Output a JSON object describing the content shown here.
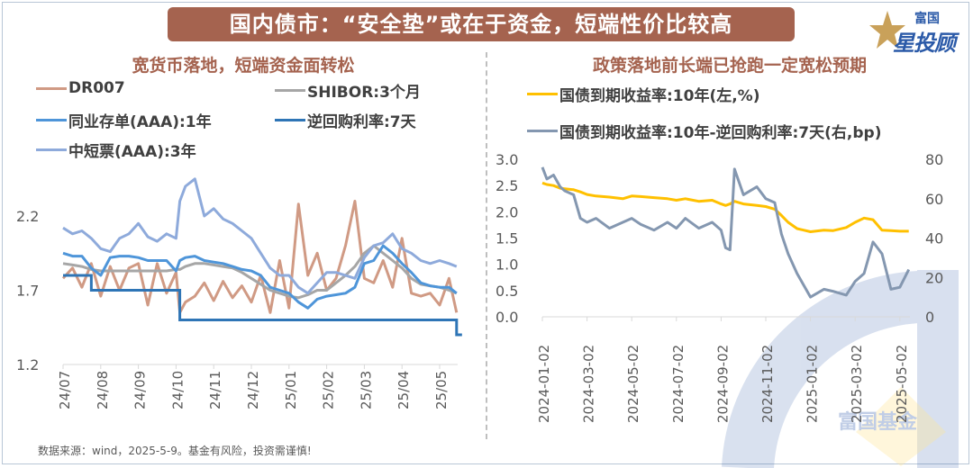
{
  "header": {
    "title": "国内债市：“安全垫”或在于资金，短端性价比较高",
    "logo_top": "富国",
    "logo_main": "星投顾",
    "watermark_text": "富国基金"
  },
  "footer": {
    "source": "数据来源：wind，2025-5-9。基金有风险，投资需谨慎!"
  },
  "colors": {
    "title_bg": "#a5634f",
    "dr007": "#d09a84",
    "shibor": "#a6a6a6",
    "ncd": "#4e95d9",
    "repo": "#2e75b6",
    "mtn": "#8eaadb",
    "cgb10y": "#ffc000",
    "spread": "#8497b0"
  },
  "chart_data": [
    {
      "type": "line",
      "title": "宽货币落地，短端资金面转松",
      "xlabel": "",
      "ylabel": "",
      "ylim": [
        1.2,
        2.2
      ],
      "yticks": [
        "1.2",
        "1.7",
        "2.2"
      ],
      "ytick_values": [
        1.2,
        1.7,
        2.2
      ],
      "xticks": [
        "24/07",
        "24/08",
        "24/09",
        "24/10",
        "24/11",
        "24/12",
        "25/01",
        "25/02",
        "25/03",
        "25/04",
        "25/05"
      ],
      "legend": "top",
      "grid": false,
      "x": [
        0,
        0.25,
        0.5,
        0.75,
        1,
        1.25,
        1.5,
        1.75,
        2,
        2.25,
        2.5,
        2.75,
        3,
        3.1,
        3.25,
        3.5,
        3.75,
        4,
        4.25,
        4.5,
        4.75,
        5,
        5.25,
        5.5,
        5.75,
        6,
        6.25,
        6.5,
        6.75,
        7,
        7.25,
        7.5,
        7.75,
        8,
        8.25,
        8.5,
        8.75,
        9,
        9.25,
        9.5,
        9.75,
        10,
        10.25,
        10.45
      ],
      "series": [
        {
          "name": "DR007",
          "color_key": "dr007",
          "values": [
            1.78,
            1.85,
            1.72,
            1.88,
            1.66,
            1.86,
            1.7,
            1.85,
            1.88,
            1.6,
            1.88,
            1.68,
            1.82,
            1.55,
            1.62,
            1.66,
            1.75,
            1.63,
            1.76,
            1.65,
            1.73,
            1.62,
            1.8,
            1.55,
            1.9,
            1.58,
            2.28,
            1.8,
            1.95,
            1.7,
            1.78,
            2.0,
            2.3,
            1.78,
            1.75,
            1.9,
            1.72,
            2.05,
            1.68,
            1.66,
            1.68,
            1.6,
            1.78,
            1.55
          ]
        },
        {
          "name": "SHIBOR:3个月",
          "color_key": "shibor",
          "values": [
            1.88,
            1.87,
            1.86,
            1.84,
            1.83,
            1.83,
            1.83,
            1.83,
            1.83,
            1.83,
            1.83,
            1.83,
            1.84,
            1.84,
            1.86,
            1.88,
            1.88,
            1.87,
            1.86,
            1.85,
            1.82,
            1.78,
            1.74,
            1.7,
            1.68,
            1.66,
            1.65,
            1.67,
            1.7,
            1.7,
            1.75,
            1.8,
            1.86,
            1.95,
            2.0,
            1.95,
            1.9,
            1.85,
            1.78,
            1.74,
            1.73,
            1.72,
            1.7,
            1.68
          ]
        },
        {
          "name": "同业存单(AAA):1年",
          "color_key": "ncd",
          "values": [
            1.95,
            1.93,
            1.93,
            1.85,
            1.8,
            1.92,
            1.93,
            1.93,
            1.92,
            1.9,
            1.9,
            1.9,
            1.83,
            1.9,
            1.92,
            1.93,
            1.9,
            1.89,
            1.88,
            1.86,
            1.84,
            1.83,
            1.8,
            1.72,
            1.7,
            1.68,
            1.62,
            1.58,
            1.64,
            1.66,
            1.67,
            1.68,
            1.72,
            1.88,
            1.9,
            2.0,
            1.95,
            1.88,
            1.82,
            1.75,
            1.73,
            1.72,
            1.72,
            1.68
          ]
        },
        {
          "name": "逆回购利率:7天",
          "color_key": "repo",
          "values": [
            1.8,
            1.8,
            1.8,
            1.7,
            1.7,
            1.7,
            1.7,
            1.7,
            1.7,
            1.7,
            1.7,
            1.7,
            1.7,
            1.5,
            1.5,
            1.5,
            1.5,
            1.5,
            1.5,
            1.5,
            1.5,
            1.5,
            1.5,
            1.5,
            1.5,
            1.5,
            1.5,
            1.5,
            1.5,
            1.5,
            1.5,
            1.5,
            1.5,
            1.5,
            1.5,
            1.5,
            1.5,
            1.5,
            1.5,
            1.5,
            1.5,
            1.5,
            1.5,
            1.4
          ]
        },
        {
          "name": "中短票(AAA):3年",
          "color_key": "mtn",
          "values": [
            2.12,
            2.08,
            2.1,
            2.05,
            1.98,
            1.96,
            2.05,
            2.08,
            2.15,
            2.06,
            2.03,
            2.08,
            2.05,
            2.3,
            2.4,
            2.45,
            2.2,
            2.25,
            2.18,
            2.15,
            2.1,
            2.05,
            1.95,
            1.85,
            1.8,
            1.8,
            1.72,
            1.68,
            1.75,
            1.82,
            1.82,
            1.8,
            1.78,
            1.92,
            2.0,
            2.02,
            2.08,
            1.98,
            1.95,
            1.9,
            1.88,
            1.9,
            1.88,
            1.86
          ]
        }
      ]
    },
    {
      "type": "line",
      "title": "政策落地前长端已抢跑一定宽松预期",
      "xlabel": "",
      "ylabel_left": "",
      "ylabel_right": "",
      "ylim_left": [
        0.0,
        3.0
      ],
      "ylim_right": [
        0,
        80
      ],
      "yticks_left": [
        "0.0",
        "0.5",
        "1.0",
        "1.5",
        "2.0",
        "2.5",
        "3.0"
      ],
      "yticks_right": [
        "0",
        "20",
        "40",
        "60",
        "80"
      ],
      "ytick_values_left": [
        0,
        0.5,
        1,
        1.5,
        2,
        2.5,
        3
      ],
      "ytick_values_right": [
        0,
        20,
        40,
        60,
        80
      ],
      "xticks": [
        "2024-01-02",
        "2024-03-02",
        "2024-05-02",
        "2024-07-02",
        "2024-09-02",
        "2024-11-02",
        "2025-01-02",
        "2025-03-02",
        "2025-05-02"
      ],
      "legend": "top",
      "grid": false,
      "x": [
        0,
        0.1,
        0.25,
        0.4,
        0.5,
        0.7,
        0.85,
        1,
        1.2,
        1.5,
        1.8,
        2,
        2.2,
        2.5,
        2.8,
        3,
        3.2,
        3.5,
        3.8,
        4,
        4.1,
        4.2,
        4.3,
        4.5,
        4.8,
        5,
        5.2,
        5.35,
        5.5,
        5.7,
        6,
        6.3,
        6.5,
        6.8,
        7,
        7.2,
        7.4,
        7.6,
        7.8,
        8,
        8.2
      ],
      "series": [
        {
          "name": "国债到期收益率:10年(左,%)",
          "axis": "left",
          "color_key": "cgb10y",
          "values": [
            2.55,
            2.52,
            2.5,
            2.45,
            2.44,
            2.42,
            2.38,
            2.33,
            2.3,
            2.28,
            2.25,
            2.3,
            2.29,
            2.27,
            2.25,
            2.22,
            2.25,
            2.2,
            2.22,
            2.15,
            2.12,
            2.15,
            2.2,
            2.15,
            2.12,
            2.1,
            2.05,
            1.93,
            1.8,
            1.68,
            1.62,
            1.65,
            1.64,
            1.7,
            1.8,
            1.88,
            1.85,
            1.65,
            1.64,
            1.63,
            1.63
          ]
        },
        {
          "name": "国债到期收益率:10年-逆回购利率:7天(右,bp)",
          "axis": "right",
          "color_key": "spread",
          "values": [
            76,
            70,
            72,
            66,
            64,
            62,
            50,
            48,
            50,
            45,
            48,
            50,
            47,
            44,
            48,
            45,
            50,
            45,
            48,
            44,
            35,
            34,
            75,
            62,
            66,
            60,
            58,
            42,
            32,
            22,
            10,
            14,
            13,
            11,
            18,
            22,
            38,
            32,
            14,
            15,
            24
          ]
        }
      ]
    }
  ]
}
